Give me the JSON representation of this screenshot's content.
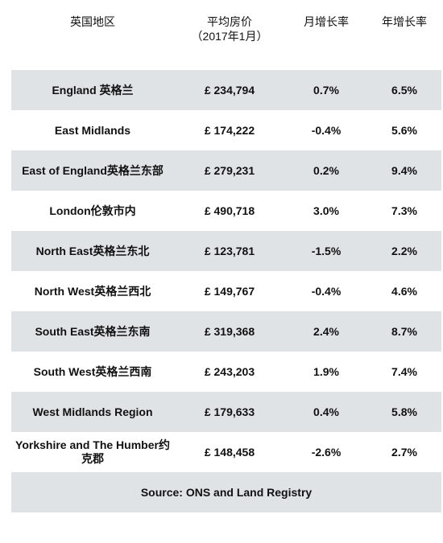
{
  "table": {
    "header": [
      "英国地区",
      [
        "平均房价",
        "（2017年1月）"
      ],
      "月增长率",
      "年增长率"
    ],
    "rows": [
      [
        "England 英格兰",
        "£ 234,794",
        "0.7%",
        "6.5%"
      ],
      [
        "East Midlands",
        "£ 174,222",
        "-0.4%",
        "5.6%"
      ],
      [
        "East of England英格兰东部",
        "£ 279,231",
        "0.2%",
        "9.4%"
      ],
      [
        "London伦敦市内",
        "£ 490,718",
        "3.0%",
        "7.3%"
      ],
      [
        "North East英格兰东北",
        "£ 123,781",
        "-1.5%",
        "2.2%"
      ],
      [
        "North West英格兰西北",
        "£ 149,767",
        "-0.4%",
        "4.6%"
      ],
      [
        "South East英格兰东南",
        "£ 319,368",
        "2.4%",
        "8.7%"
      ],
      [
        "South West英格兰西南",
        "£ 243,203",
        "1.9%",
        "7.4%"
      ],
      [
        "West Midlands Region",
        "£ 179,633",
        "0.4%",
        "5.8%"
      ],
      [
        "Yorkshire and The Humber约克郡",
        "£ 148,458",
        "-2.6%",
        "2.7%"
      ]
    ],
    "source": "Source: ONS and Land Registry"
  }
}
